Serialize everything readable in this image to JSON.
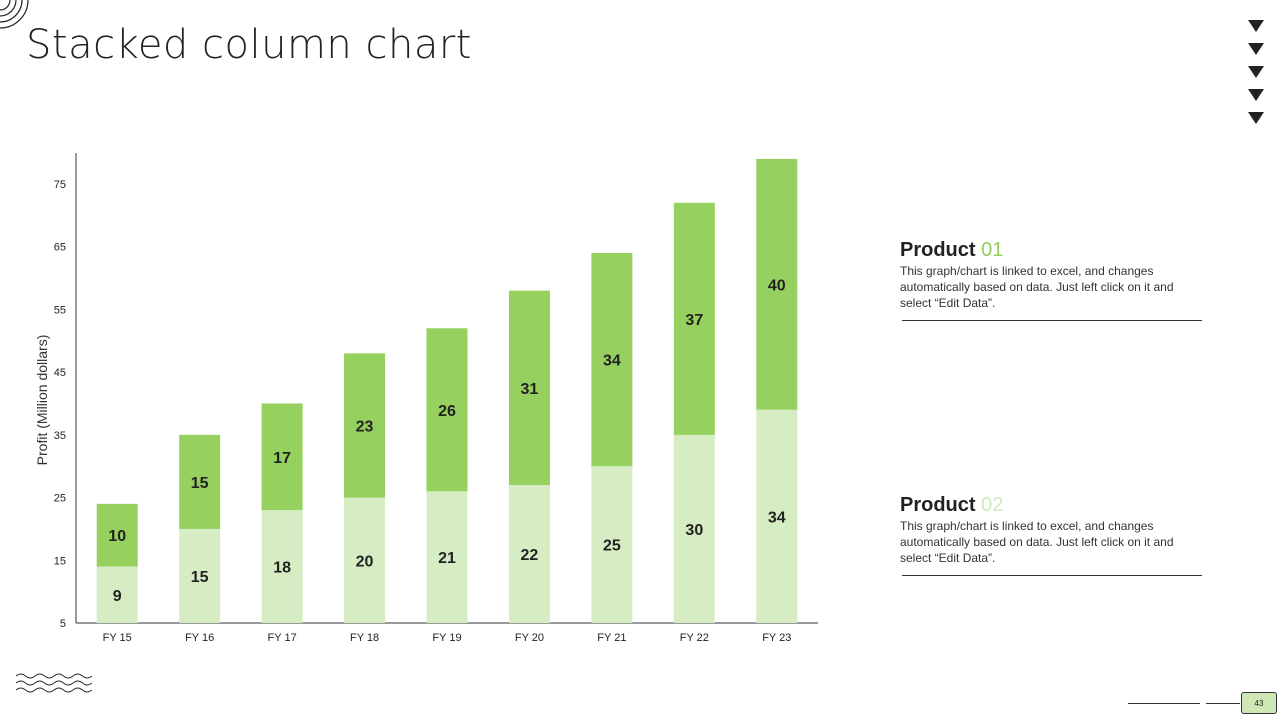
{
  "slide": {
    "title": "Stacked column chart",
    "page_number": "43",
    "icons": [
      "corner-arcs-icon",
      "nav-arrow-icon",
      "wave-lines-icon"
    ]
  },
  "legend": [
    {
      "name": "Product",
      "num": "01",
      "num_color": "#93cf5b",
      "description": "This graph/chart is linked to excel, and changes automatically based on data. Just left click on it and select “Edit Data”."
    },
    {
      "name": "Product",
      "num": "02",
      "num_color": "#cfe8bd",
      "description": "This graph/chart is linked to excel, and changes automatically based on data. Just left click on it and select “Edit Data”."
    }
  ],
  "chart_data": {
    "type": "bar",
    "stacked": true,
    "categories": [
      "FY 15",
      "FY 16",
      "FY 17",
      "FY 18",
      "FY 19",
      "FY 20",
      "FY 21",
      "FY 22",
      "FY 23"
    ],
    "series": [
      {
        "name": "Product 02",
        "color": "#d6edc4",
        "values": [
          9,
          15,
          18,
          20,
          21,
          22,
          25,
          30,
          34
        ]
      },
      {
        "name": "Product 01",
        "color": "#96d05e",
        "values": [
          10,
          15,
          17,
          23,
          26,
          31,
          34,
          37,
          40
        ]
      }
    ],
    "title": "",
    "xlabel": "",
    "ylabel": "Profit  (Million dollars)",
    "ylim": [
      5,
      80
    ],
    "yticks": [
      5,
      15,
      25,
      35,
      45,
      55,
      65,
      75
    ],
    "grid": false,
    "legend_position": "right"
  }
}
